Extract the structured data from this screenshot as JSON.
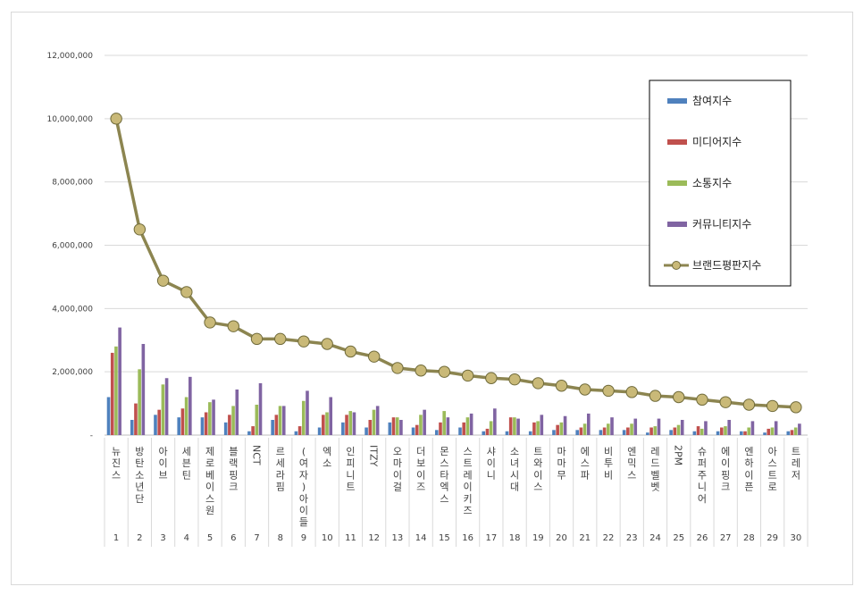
{
  "chart_data": {
    "type": "bar+line",
    "title": "",
    "xlabel": "",
    "ylabel": "",
    "ylim": [
      0,
      12000000
    ],
    "yticks": [
      "12,000,000",
      "10,000,000",
      "8,000,000",
      "6,000,000",
      "4,000,000",
      "2,000,000",
      "-"
    ],
    "grid": true,
    "legend_position": "top-right",
    "numbers": [
      "1",
      "2",
      "3",
      "4",
      "5",
      "6",
      "7",
      "8",
      "9",
      "10",
      "11",
      "12",
      "13",
      "14",
      "15",
      "16",
      "17",
      "18",
      "19",
      "20",
      "21",
      "22",
      "23",
      "24",
      "25",
      "26",
      "27",
      "28",
      "29",
      "30"
    ],
    "categories": [
      "뉴진스",
      "방탄소년단",
      "아이브",
      "세븐틴",
      "제로베이스원",
      "블랙핑크",
      "NCT",
      "르세라핌",
      "(여자)아이들",
      "엑소",
      "인피니트",
      "ITZY",
      "오마이걸",
      "더보이즈",
      "몬스타엑스",
      "스트레이키즈",
      "샤이니",
      "소녀시대",
      "트와이스",
      "마마무",
      "에스파",
      "비투비",
      "엔믹스",
      "레드벨벳",
      "2PM",
      "슈퍼주니어",
      "에이핑크",
      "엔하이픈",
      "아스트로",
      "트레저"
    ],
    "series": [
      {
        "name": "참여지수",
        "type": "bar",
        "color": "#4f81bd",
        "values": [
          1200000,
          480000,
          640000,
          560000,
          560000,
          400000,
          120000,
          480000,
          120000,
          240000,
          400000,
          240000,
          400000,
          240000,
          160000,
          240000,
          120000,
          120000,
          120000,
          160000,
          160000,
          160000,
          160000,
          80000,
          160000,
          120000,
          120000,
          120000,
          80000,
          120000
        ]
      },
      {
        "name": "미디어지수",
        "type": "bar",
        "color": "#c0504d",
        "values": [
          2600000,
          1000000,
          800000,
          840000,
          720000,
          640000,
          280000,
          640000,
          280000,
          640000,
          640000,
          480000,
          560000,
          320000,
          400000,
          400000,
          200000,
          560000,
          400000,
          320000,
          240000,
          240000,
          240000,
          240000,
          240000,
          280000,
          240000,
          120000,
          200000,
          160000
        ]
      },
      {
        "name": "소통지수",
        "type": "bar",
        "color": "#9bbb59",
        "values": [
          2800000,
          2080000,
          1600000,
          1200000,
          1040000,
          920000,
          960000,
          920000,
          1080000,
          720000,
          760000,
          800000,
          560000,
          640000,
          760000,
          560000,
          440000,
          560000,
          440000,
          400000,
          360000,
          360000,
          360000,
          280000,
          320000,
          200000,
          280000,
          240000,
          240000,
          240000
        ]
      },
      {
        "name": "커뮤니티지수",
        "type": "bar",
        "color": "#8064a2",
        "values": [
          3400000,
          2880000,
          1800000,
          1840000,
          1120000,
          1440000,
          1640000,
          920000,
          1400000,
          1200000,
          720000,
          920000,
          480000,
          800000,
          560000,
          680000,
          840000,
          520000,
          640000,
          600000,
          680000,
          560000,
          520000,
          520000,
          480000,
          440000,
          480000,
          440000,
          440000,
          360000
        ]
      },
      {
        "name": "브랜드평판지수",
        "type": "line",
        "color": "#7f7a3c",
        "values": [
          10000000,
          6500000,
          4880000,
          4520000,
          3560000,
          3440000,
          3040000,
          3040000,
          2960000,
          2880000,
          2640000,
          2480000,
          2120000,
          2040000,
          2000000,
          1880000,
          1800000,
          1760000,
          1640000,
          1560000,
          1440000,
          1400000,
          1360000,
          1240000,
          1200000,
          1120000,
          1040000,
          960000,
          920000,
          880000
        ]
      }
    ]
  }
}
